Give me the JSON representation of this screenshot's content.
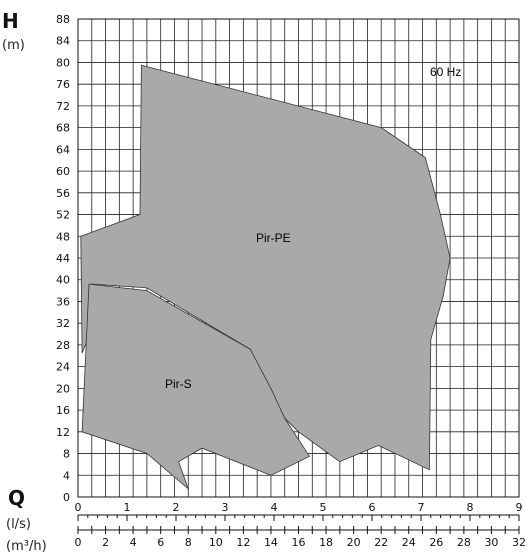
{
  "chart_data": {
    "type": "area",
    "title": "",
    "y_axis": {
      "label": "H",
      "unit": "(m)",
      "range": [
        0,
        88
      ],
      "ticks": [
        0,
        4,
        8,
        12,
        16,
        20,
        24,
        28,
        32,
        36,
        40,
        44,
        48,
        52,
        56,
        60,
        64,
        68,
        72,
        76,
        80,
        84,
        88
      ]
    },
    "x_axis_ls": {
      "label": "Q",
      "unit": "(l/s)",
      "range": [
        0,
        9
      ],
      "ticks": [
        0,
        1,
        2,
        3,
        4,
        5,
        6,
        7,
        8,
        9
      ]
    },
    "x_axis_m3h": {
      "unit": "(m³/h)",
      "range": [
        0,
        32
      ],
      "ticks": [
        0,
        2,
        4,
        6,
        8,
        10,
        12,
        14,
        16,
        18,
        20,
        22,
        24,
        26,
        28,
        30,
        32
      ]
    },
    "grid": true,
    "annotation": "60 Hz",
    "regions": [
      {
        "label": "Pir-PE",
        "x_unit": "m3/h",
        "points": [
          [
            4.6,
            79.5
          ],
          [
            22,
            68
          ],
          [
            25.2,
            62.5
          ],
          [
            26.3,
            52
          ],
          [
            27,
            44
          ],
          [
            26.5,
            37
          ],
          [
            25.6,
            29
          ],
          [
            25.5,
            5
          ],
          [
            21.8,
            9.5
          ],
          [
            19,
            6.5
          ],
          [
            16,
            12
          ],
          [
            15,
            14.5
          ],
          [
            12.5,
            27.2
          ],
          [
            5,
            38.5
          ],
          [
            1,
            39.2
          ],
          [
            0.7,
            29
          ],
          [
            0.3,
            26.5
          ],
          [
            0.2,
            48
          ],
          [
            4.5,
            52
          ]
        ]
      },
      {
        "label": "Pir-S",
        "x_unit": "m3/h",
        "points": [
          [
            0.8,
            39.2
          ],
          [
            5,
            38
          ],
          [
            12.5,
            27.2
          ],
          [
            14,
            20
          ],
          [
            15,
            14.5
          ],
          [
            16.8,
            7.5
          ],
          [
            14,
            4
          ],
          [
            9,
            9
          ],
          [
            7.3,
            6.5
          ],
          [
            8,
            1.5
          ],
          [
            5,
            8
          ],
          [
            0.3,
            12
          ]
        ]
      }
    ]
  }
}
